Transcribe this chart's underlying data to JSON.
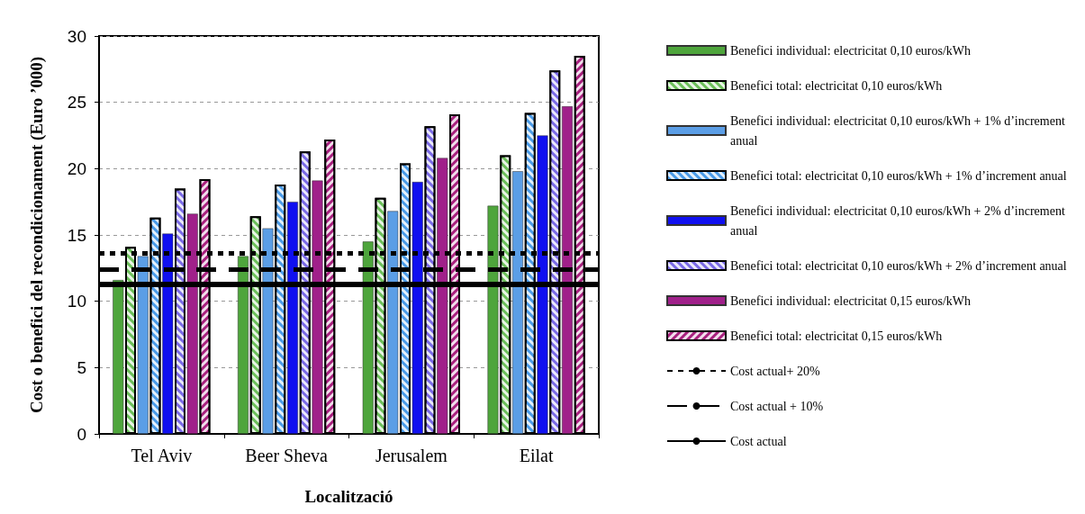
{
  "chart_data": {
    "type": "bar",
    "xlabel": "Localització",
    "ylabel": "Cost o benefici del recondicionament (Euro ’000)",
    "categories": [
      "Tel Aviv",
      "Beer Sheva",
      "Jerusalem",
      "Eilat"
    ],
    "series": [
      {
        "name": "Benefici individual: electricitat 0,10 euros/kWh",
        "color": "#4ea53c",
        "values": [
          11.6,
          13.4,
          14.5,
          17.2
        ]
      },
      {
        "name": "Benefici total: electricitat 0,10 euros/kWh",
        "color": "#6cbf5a",
        "values": [
          14.1,
          16.4,
          17.8,
          21.0
        ]
      },
      {
        "name": "Benefici individual: electricitat 0,10 euros/kWh + 1% d’increment anual",
        "color": "#5b9ee6",
        "values": [
          13.4,
          15.5,
          16.8,
          19.8
        ]
      },
      {
        "name": "Benefici total: electricitat 0,10 euros/kWh + 1% d’increment anual",
        "color": "#4a9be8",
        "values": [
          16.3,
          18.8,
          20.4,
          24.2
        ]
      },
      {
        "name": "Benefici individual: electricitat 0,10 euros/kWh + 2% d’increment anual",
        "color": "#1010f0",
        "values": [
          15.1,
          17.5,
          19.0,
          22.5
        ]
      },
      {
        "name": "Benefici total: electricitat 0,10 euros/kWh + 2% d’increment anual",
        "color": "#7a6ae6",
        "values": [
          18.5,
          21.3,
          23.2,
          27.4
        ]
      },
      {
        "name": "Benefici individual: electricitat 0,15 euros/kWh",
        "color": "#a0208a",
        "values": [
          16.6,
          19.1,
          20.8,
          24.7
        ]
      },
      {
        "name": "Benefici total: electricitat 0,15 euros/kWh",
        "color": "#a8207e",
        "values": [
          19.2,
          22.2,
          24.1,
          28.5
        ]
      }
    ],
    "ref_lines": [
      {
        "axis": "y",
        "value": 13.6,
        "label": "Cost actual+ 20%",
        "color": "#000000",
        "line_style": "dotted"
      },
      {
        "axis": "y",
        "value": 12.4,
        "label": "Cost actual + 10%",
        "color": "#000000",
        "line_style": "dashed"
      },
      {
        "axis": "y",
        "value": 11.3,
        "label": "Cost actual",
        "color": "#000000",
        "line_style": "solid"
      }
    ],
    "ylim": [
      0,
      30
    ],
    "yticks": [
      0,
      5,
      10,
      15,
      20,
      25,
      30
    ],
    "grid": "y",
    "legend": "right"
  }
}
